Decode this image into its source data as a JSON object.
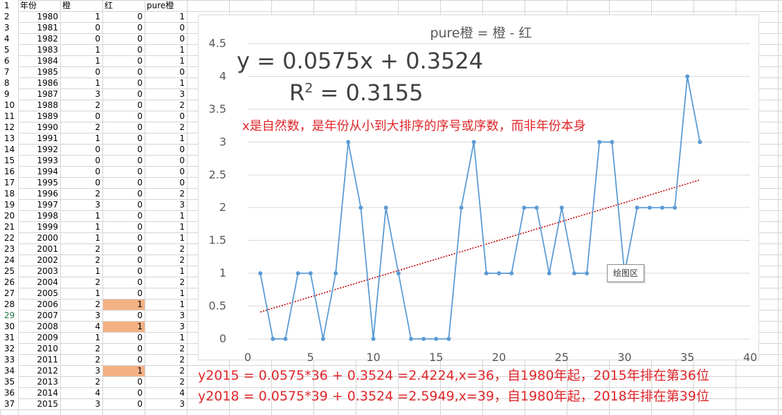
{
  "sheet": {
    "headers": {
      "rownum": "1",
      "year": "年份",
      "orange": "橙",
      "red": "红",
      "pure": "pure橙"
    },
    "rows": [
      {
        "n": "2",
        "year": "1980",
        "orange": "1",
        "red": "0",
        "pure": "1"
      },
      {
        "n": "3",
        "year": "1981",
        "orange": "0",
        "red": "0",
        "pure": "0"
      },
      {
        "n": "4",
        "year": "1982",
        "orange": "0",
        "red": "0",
        "pure": "0"
      },
      {
        "n": "5",
        "year": "1983",
        "orange": "1",
        "red": "0",
        "pure": "1"
      },
      {
        "n": "6",
        "year": "1984",
        "orange": "1",
        "red": "0",
        "pure": "1"
      },
      {
        "n": "7",
        "year": "1985",
        "orange": "0",
        "red": "0",
        "pure": "0"
      },
      {
        "n": "8",
        "year": "1986",
        "orange": "1",
        "red": "0",
        "pure": "1"
      },
      {
        "n": "9",
        "year": "1987",
        "orange": "3",
        "red": "0",
        "pure": "3"
      },
      {
        "n": "10",
        "year": "1988",
        "orange": "2",
        "red": "0",
        "pure": "2"
      },
      {
        "n": "11",
        "year": "1989",
        "orange": "0",
        "red": "0",
        "pure": "0"
      },
      {
        "n": "12",
        "year": "1990",
        "orange": "2",
        "red": "0",
        "pure": "2"
      },
      {
        "n": "13",
        "year": "1991",
        "orange": "1",
        "red": "0",
        "pure": "1"
      },
      {
        "n": "14",
        "year": "1992",
        "orange": "0",
        "red": "0",
        "pure": "0"
      },
      {
        "n": "15",
        "year": "1993",
        "orange": "0",
        "red": "0",
        "pure": "0"
      },
      {
        "n": "16",
        "year": "1994",
        "orange": "0",
        "red": "0",
        "pure": "0"
      },
      {
        "n": "17",
        "year": "1995",
        "orange": "0",
        "red": "0",
        "pure": "0"
      },
      {
        "n": "18",
        "year": "1996",
        "orange": "2",
        "red": "0",
        "pure": "2"
      },
      {
        "n": "19",
        "year": "1997",
        "orange": "3",
        "red": "0",
        "pure": "3"
      },
      {
        "n": "20",
        "year": "1998",
        "orange": "1",
        "red": "0",
        "pure": "1"
      },
      {
        "n": "21",
        "year": "1999",
        "orange": "1",
        "red": "0",
        "pure": "1"
      },
      {
        "n": "22",
        "year": "2000",
        "orange": "1",
        "red": "0",
        "pure": "1"
      },
      {
        "n": "23",
        "year": "2001",
        "orange": "2",
        "red": "0",
        "pure": "2"
      },
      {
        "n": "24",
        "year": "2002",
        "orange": "2",
        "red": "0",
        "pure": "2"
      },
      {
        "n": "25",
        "year": "2003",
        "orange": "1",
        "red": "0",
        "pure": "1"
      },
      {
        "n": "26",
        "year": "2004",
        "orange": "2",
        "red": "0",
        "pure": "2"
      },
      {
        "n": "27",
        "year": "2005",
        "orange": "1",
        "red": "0",
        "pure": "1"
      },
      {
        "n": "28",
        "year": "2006",
        "orange": "2",
        "red": "1",
        "pure": "1",
        "highlight": true
      },
      {
        "n": "29",
        "year": "2007",
        "orange": "3",
        "red": "0",
        "pure": "3"
      },
      {
        "n": "30",
        "year": "2008",
        "orange": "4",
        "red": "1",
        "pure": "3",
        "highlight": true
      },
      {
        "n": "31",
        "year": "2009",
        "orange": "1",
        "red": "0",
        "pure": "1"
      },
      {
        "n": "32",
        "year": "2010",
        "orange": "2",
        "red": "0",
        "pure": "2"
      },
      {
        "n": "33",
        "year": "2011",
        "orange": "2",
        "red": "0",
        "pure": "2"
      },
      {
        "n": "34",
        "year": "2012",
        "orange": "3",
        "red": "1",
        "pure": "2",
        "highlight": true
      },
      {
        "n": "35",
        "year": "2013",
        "orange": "2",
        "red": "0",
        "pure": "2"
      },
      {
        "n": "36",
        "year": "2014",
        "orange": "4",
        "red": "0",
        "pure": "4"
      },
      {
        "n": "37",
        "year": "2015",
        "orange": "3",
        "red": "0",
        "pure": "3"
      }
    ],
    "selected_row": "29",
    "highlight_color": "#f4b183"
  },
  "chart_data": {
    "type": "line",
    "title": "pure橙 = 橙 - 红",
    "x": [
      1,
      2,
      3,
      4,
      5,
      6,
      7,
      8,
      9,
      10,
      11,
      12,
      13,
      14,
      15,
      16,
      17,
      18,
      19,
      20,
      21,
      22,
      23,
      24,
      25,
      26,
      27,
      28,
      29,
      30,
      31,
      32,
      33,
      34,
      35,
      36
    ],
    "series": [
      {
        "values": [
          1,
          0,
          0,
          1,
          1,
          0,
          1,
          3,
          2,
          0,
          2,
          1,
          0,
          0,
          0,
          0,
          2,
          3,
          1,
          1,
          1,
          2,
          2,
          1,
          2,
          1,
          1,
          3,
          3,
          1,
          2,
          2,
          2,
          2,
          4,
          3
        ],
        "color": "#5b9bd5"
      }
    ],
    "trendline": {
      "type": "linear",
      "slope": 0.0575,
      "intercept": 0.3524,
      "from": 1,
      "to": 36,
      "color": "#c00000",
      "style": "dotted"
    },
    "xlim": [
      0,
      40
    ],
    "ylim": [
      0,
      4.5
    ],
    "xticks": [
      "0",
      "5",
      "10",
      "15",
      "20",
      "25",
      "30",
      "35",
      "40"
    ],
    "yticks": [
      "0",
      "0.5",
      "1",
      "1.5",
      "2",
      "2.5",
      "3",
      "3.5",
      "4",
      "4.5"
    ],
    "grid": true,
    "xlabel": "",
    "ylabel": ""
  },
  "annotations": {
    "equation": "y = 0.0575x + 0.3524",
    "r2_prefix": "R",
    "r2_sup": "2",
    "r2_rest": " = 0.3155",
    "note_x": "x是自然数，是年份从小到大排序的序号或序数，而非年份本身",
    "calc_2015": "y2015 = 0.0575*36 + 0.3524 =2.4224,x=36，自1980年起，2015年排在第36位",
    "calc_2018": "y2018 = 0.0575*39 + 0.3524 =2.5949,x=39，自1980年起，2018年排在第39位",
    "tooltip": "绘图区"
  }
}
